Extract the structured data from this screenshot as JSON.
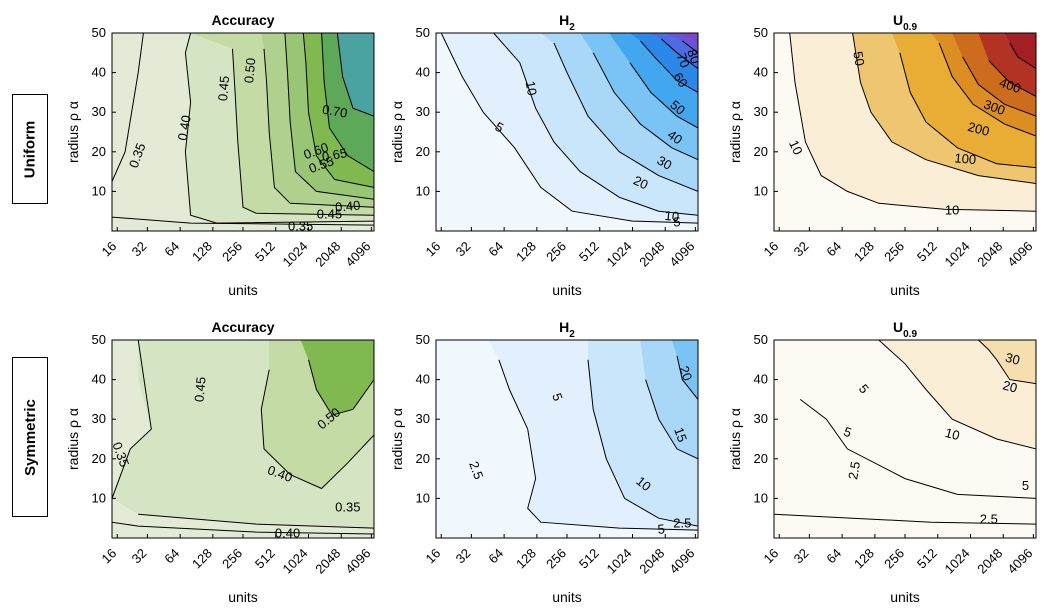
{
  "rows": [
    {
      "label": "Uniform"
    },
    {
      "label": "Symmetric"
    }
  ],
  "colors": {
    "green": [
      "#e3ebd6",
      "#d5e4c2",
      "#c4dba6",
      "#b0d18e",
      "#98c674",
      "#7fb950",
      "#5ea85a",
      "#4aa3a0",
      "#31a0c6"
    ],
    "blue": [
      "#f1f8fe",
      "#e2f0fd",
      "#c9e6fb",
      "#a8d7f8",
      "#7ac3f5",
      "#43a7f0",
      "#2b88e9",
      "#4e6be2",
      "#6c54d8",
      "#7f46cd"
    ],
    "orange": [
      "#fdfaf4",
      "#fbeed7",
      "#f6dfae",
      "#efc670",
      "#e9ad35",
      "#dc8e22",
      "#cd6c1c",
      "#bf4d1b",
      "#b23323",
      "#a31f23"
    ]
  },
  "chart_data": [
    {
      "type": "contour",
      "title": "Accuracy",
      "xlabel": "units",
      "ylabel": "radius  ρ α",
      "x": [
        "16",
        "32",
        "64",
        "128",
        "256",
        "512",
        "1024",
        "2048",
        "4096"
      ],
      "ylim": [
        0,
        50
      ],
      "yticks": [
        10,
        20,
        30,
        40,
        50
      ],
      "levels": [
        0.35,
        0.4,
        0.45,
        0.5,
        0.55,
        0.6,
        0.65,
        0.7
      ],
      "contour_labels": [
        "0.35",
        "0.40",
        "0.45",
        "0.50",
        "0.55",
        "0.60",
        "0.65",
        "0.70",
        "0.40",
        "0.45",
        "0.35"
      ],
      "palette": "green"
    },
    {
      "type": "contour",
      "title": "H",
      "title_sub": "2",
      "xlabel": "units",
      "ylabel": "radius  ρ α",
      "x": [
        "16",
        "32",
        "64",
        "128",
        "256",
        "512",
        "1024",
        "2048",
        "4096"
      ],
      "ylim": [
        0,
        50
      ],
      "yticks": [
        10,
        20,
        30,
        40,
        50
      ],
      "levels": [
        5,
        10,
        20,
        30,
        40,
        50,
        60,
        70,
        80
      ],
      "contour_labels": [
        "10",
        "5",
        "20",
        "30",
        "40",
        "50",
        "60",
        "70",
        "80",
        "10",
        "5"
      ],
      "palette": "blue"
    },
    {
      "type": "contour",
      "title": "U",
      "title_sub": "0.9",
      "xlabel": "units",
      "ylabel": "radius  ρ α",
      "x": [
        "16",
        "32",
        "64",
        "128",
        "256",
        "512",
        "1024",
        "2048",
        "4096"
      ],
      "ylim": [
        0,
        50
      ],
      "yticks": [
        10,
        20,
        30,
        40,
        50
      ],
      "levels": [
        10,
        50,
        100,
        200,
        300,
        400
      ],
      "contour_labels": [
        "50",
        "10",
        "100",
        "200",
        "300",
        "400",
        "10"
      ],
      "palette": "orange"
    },
    {
      "type": "contour",
      "title": "Accuracy",
      "xlabel": "units",
      "ylabel": "radius  ρ α",
      "x": [
        "16",
        "32",
        "64",
        "128",
        "256",
        "512",
        "1024",
        "2048",
        "4096"
      ],
      "ylim": [
        0,
        50
      ],
      "yticks": [
        10,
        20,
        30,
        40,
        50
      ],
      "levels": [
        0.35,
        0.4,
        0.45,
        0.5
      ],
      "contour_labels": [
        "0.35",
        "0.40",
        "0.45",
        "0.50",
        "0.40",
        "0.35"
      ],
      "palette": "green"
    },
    {
      "type": "contour",
      "title": "H",
      "title_sub": "2",
      "xlabel": "units",
      "ylabel": "radius  ρ α",
      "x": [
        "16",
        "32",
        "64",
        "128",
        "256",
        "512",
        "1024",
        "2048",
        "4096"
      ],
      "ylim": [
        0,
        50
      ],
      "yticks": [
        10,
        20,
        30,
        40,
        50
      ],
      "levels": [
        2.5,
        5,
        10,
        15,
        20
      ],
      "contour_labels": [
        "5",
        "2.5",
        "20",
        "15",
        "10",
        "5",
        "2.5"
      ],
      "palette": "blue"
    },
    {
      "type": "contour",
      "title": "U",
      "title_sub": "0.9",
      "xlabel": "units",
      "ylabel": "radius  ρ α",
      "x": [
        "16",
        "32",
        "64",
        "128",
        "256",
        "512",
        "1024",
        "2048",
        "4096"
      ],
      "ylim": [
        0,
        50
      ],
      "yticks": [
        10,
        20,
        30,
        40,
        50
      ],
      "levels": [
        2.5,
        5,
        10,
        20,
        30
      ],
      "contour_labels": [
        "5",
        "5",
        "2.5",
        "30",
        "20",
        "10",
        "5",
        "2.5"
      ],
      "palette": "orange"
    }
  ]
}
